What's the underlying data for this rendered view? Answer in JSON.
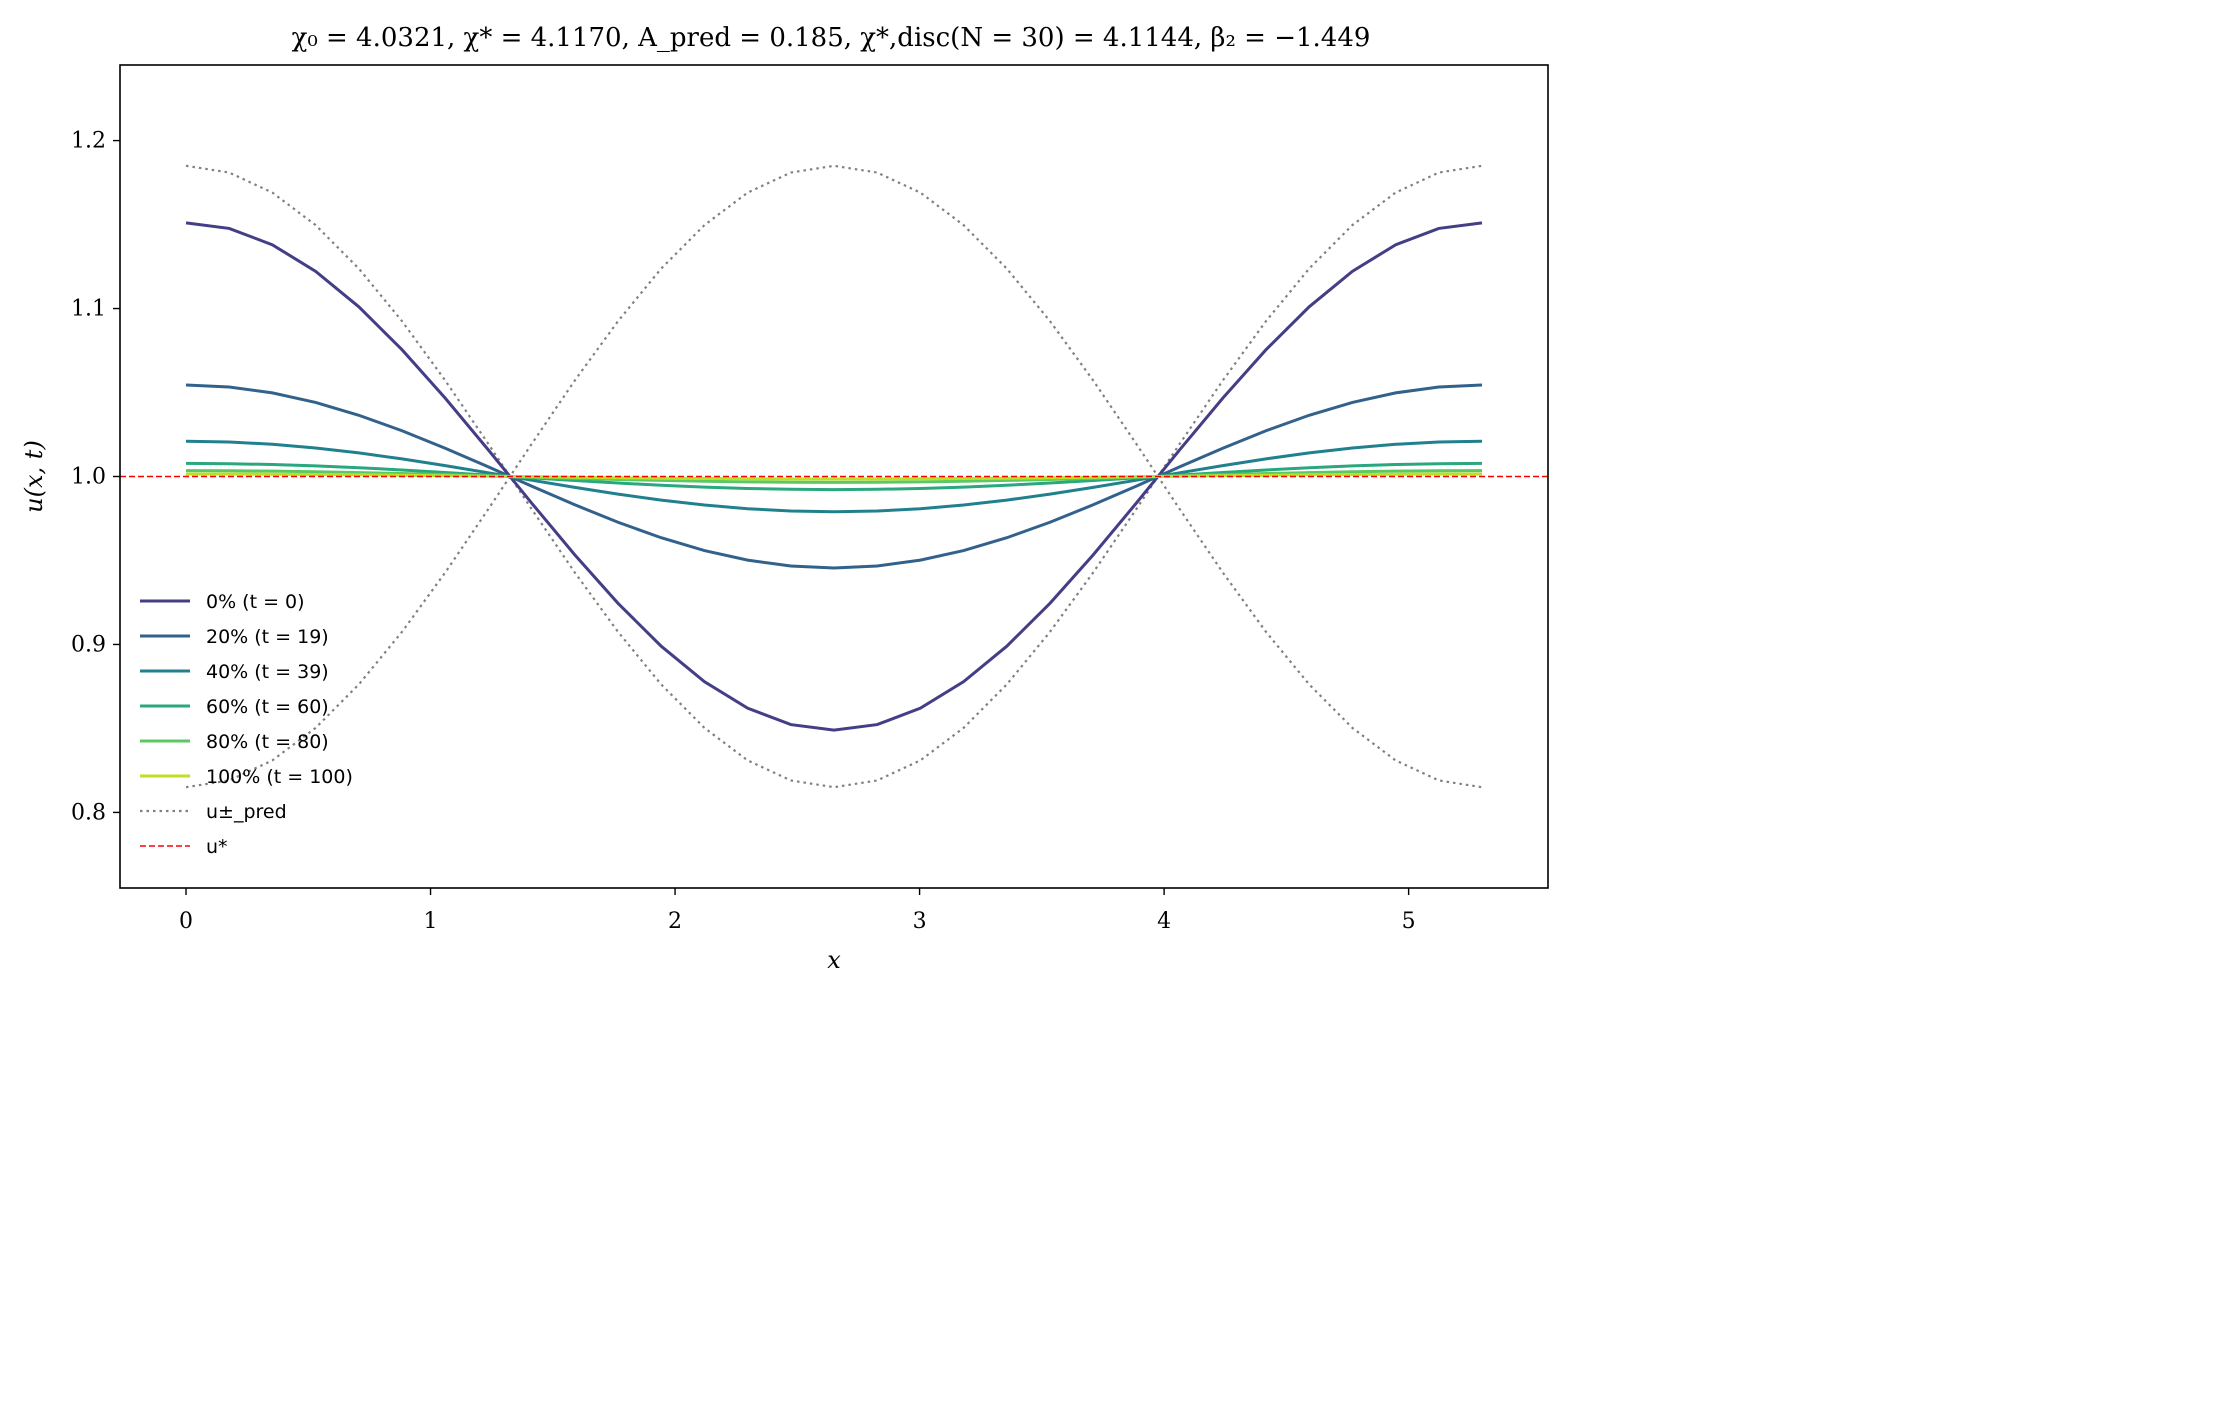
{
  "chart_data": {
    "type": "line",
    "title": "χ₀ = 4.0321,  χ* = 4.1170,  A_pred = 0.185,  χ*,disc(N = 30) = 4.1144,  β₂ = −1.449",
    "xlabel": "x",
    "ylabel": "u(x, t)",
    "xlim": [
      -0.27,
      5.57
    ],
    "ylim": [
      0.755,
      1.245
    ],
    "x_ticks": [
      0,
      1,
      2,
      3,
      4,
      5
    ],
    "y_ticks": [
      0.8,
      0.9,
      1.0,
      1.1,
      1.2
    ],
    "x_tick_labels": [
      "0",
      "1",
      "2",
      "3",
      "4",
      "5"
    ],
    "y_tick_labels": [
      "0.8",
      "0.9",
      "1.0",
      "1.1",
      "1.2"
    ],
    "grid": false,
    "legend_position": "lower-left",
    "x_range": [
      0,
      5.3
    ],
    "n_points": 31,
    "wavenumber_period": 5.3,
    "series": [
      {
        "name": "0% (t = 0)",
        "amplitude": 0.151,
        "color": "#433e85",
        "style": "solid"
      },
      {
        "name": "20% (t = 19)",
        "amplitude": 0.0545,
        "color": "#32618c",
        "style": "solid"
      },
      {
        "name": "40% (t = 39)",
        "amplitude": 0.021,
        "color": "#21808d",
        "style": "solid"
      },
      {
        "name": "60% (t = 60)",
        "amplitude": 0.0078,
        "color": "#2aa77d",
        "style": "solid"
      },
      {
        "name": "80% (t = 80)",
        "amplitude": 0.0035,
        "color": "#5bc865",
        "style": "solid"
      },
      {
        "name": "100% (t = 100)",
        "amplitude": 0.0015,
        "color": "#bddf26",
        "style": "solid"
      }
    ],
    "bounds": {
      "name": "u±_pred",
      "amplitude": 0.185,
      "color": "#808080",
      "style": "dotted"
    },
    "reference": {
      "name": "u*",
      "value": 1.0,
      "color": "#ff0000",
      "style": "dashed"
    }
  }
}
